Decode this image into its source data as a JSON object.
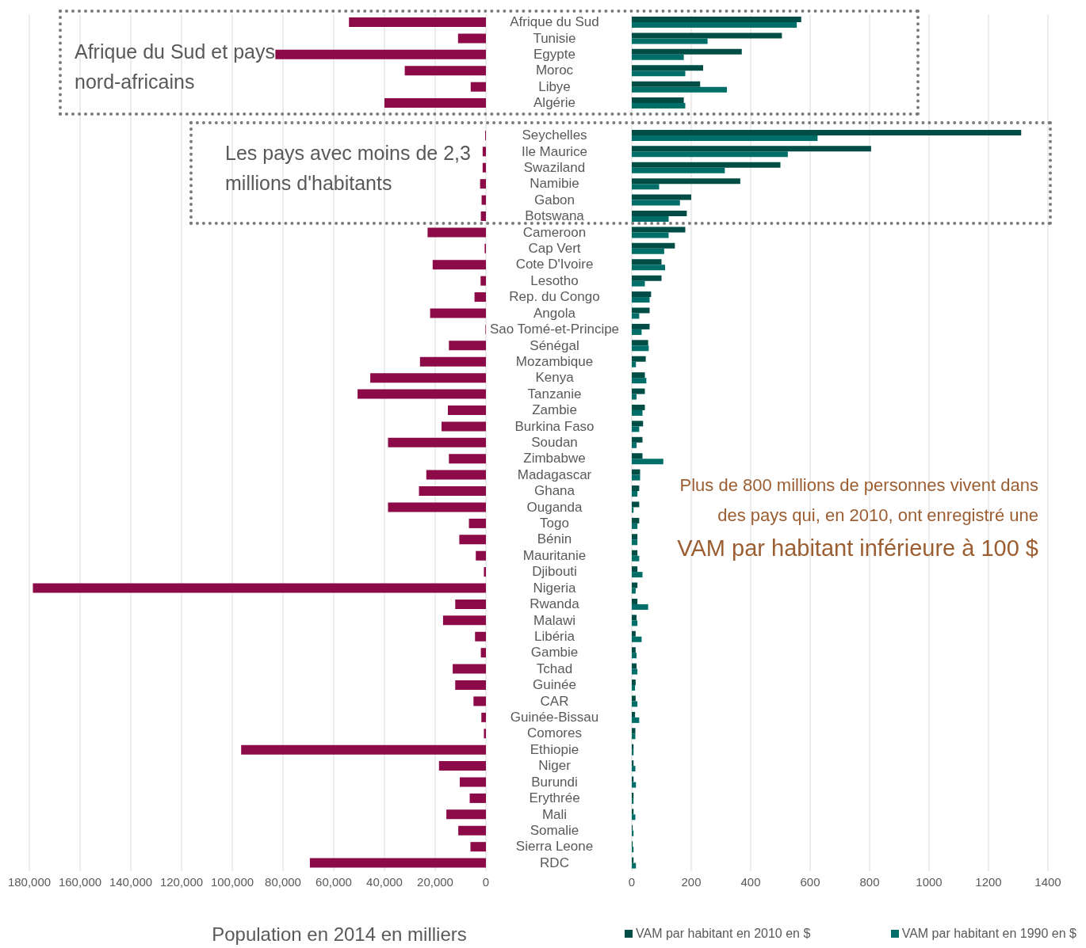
{
  "chart_data": [
    {
      "type": "bar",
      "orientation": "horizontal",
      "xlabel": "Population en 2014 en milliers",
      "categories": [
        "Afrique du Sud",
        "Tunisie",
        "Egypte",
        "Moroc",
        "Libye",
        "Algérie",
        null,
        "Seychelles",
        "Ile Maurice",
        "Swaziland",
        "Namibie",
        "Gabon",
        "Botswana",
        "Cameroon",
        "Cap Vert",
        "Cote D'Ivoire",
        "Lesotho",
        "Rep. du Congo",
        "Angola",
        "Sao Tomé-et-Principe",
        "Sénégal",
        "Mozambique",
        "Kenya",
        "Tanzanie",
        "Zambie",
        "Burkina Faso",
        "Soudan",
        "Zimbabwe",
        "Madagascar",
        "Ghana",
        "Ouganda",
        "Togo",
        "Bénin",
        "Mauritanie",
        "Djibouti",
        "Nigeria",
        "Rwanda",
        "Malawi",
        "Libéria",
        "Gambie",
        "Tchad",
        "Guinée",
        "CAR",
        "Guinée-Bissau",
        "Comores",
        "Ethiopie",
        "Niger",
        "Burundi",
        "Erythrée",
        "Mali",
        "Somalie",
        "Sierra Leone",
        "RDC"
      ],
      "values": [
        54000,
        11000,
        83000,
        32000,
        6000,
        40000,
        null,
        300,
        1300,
        1300,
        2300,
        1700,
        2000,
        23000,
        500,
        21000,
        2100,
        4500,
        22000,
        200,
        14600,
        26000,
        45600,
        50600,
        15000,
        17500,
        38600,
        14600,
        23500,
        26400,
        38600,
        6700,
        10500,
        4000,
        800,
        178600,
        12100,
        16900,
        4300,
        2000,
        13100,
        12100,
        4900,
        1800,
        800,
        96500,
        18500,
        10300,
        6400,
        15600,
        10900,
        6100,
        69400
      ],
      "color": "#8c0a48",
      "xlim": [
        180000,
        0
      ],
      "xticks": [
        {
          "value": 180000,
          "label": "180,000"
        },
        {
          "value": 160000,
          "label": "160,000"
        },
        {
          "value": 140000,
          "label": "140,000"
        },
        {
          "value": 120000,
          "label": "120,000"
        },
        {
          "value": 100000,
          "label": "100,000"
        },
        {
          "value": 80000,
          "label": "80,000"
        },
        {
          "value": 60000,
          "label": "60,000"
        },
        {
          "value": 40000,
          "label": "40,000"
        },
        {
          "value": 20000,
          "label": "20,000"
        },
        0
      ],
      "grid": "x",
      "tick_labels": "x",
      "annotations": [
        "Afrique du Sud et pays nord-africains",
        "Les pays avec moins de 2,3 millions d'habitants"
      ]
    },
    {
      "type": "bar",
      "orientation": "horizontal",
      "categories": [
        "Afrique du Sud",
        "Tunisie",
        "Egypte",
        "Moroc",
        "Libye",
        "Algérie",
        null,
        "Seychelles",
        "Ile Maurice",
        "Swaziland",
        "Namibie",
        "Gabon",
        "Botswana",
        "Cameroon",
        "Cap Vert",
        "Cote D'Ivoire",
        "Lesotho",
        "Rep. du Congo",
        "Angola",
        "Sao Tomé-et-Principe",
        "Sénégal",
        "Mozambique",
        "Kenya",
        "Tanzanie",
        "Zambie",
        "Burkina Faso",
        "Soudan",
        "Zimbabwe",
        "Madagascar",
        "Ghana",
        "Ouganda",
        "Togo",
        "Bénin",
        "Mauritanie",
        "Djibouti",
        "Nigeria",
        "Rwanda",
        "Malawi",
        "Libéria",
        "Gambie",
        "Tchad",
        "Guinée",
        "CAR",
        "Guinée-Bissau",
        "Comores",
        "Ethiopie",
        "Niger",
        "Burundi",
        "Erythrée",
        "Mali",
        "Somalie",
        "Sierra Leone",
        "RDC"
      ],
      "series": [
        {
          "name": "VAM par habitant en 2010 en $",
          "color": "#004d46",
          "values": [
            570,
            505,
            370,
            240,
            230,
            175,
            null,
            1310,
            805,
            500,
            365,
            200,
            185,
            180,
            145,
            100,
            100,
            65,
            60,
            60,
            55,
            47,
            44,
            44,
            44,
            38,
            36,
            36,
            28,
            25,
            25,
            25,
            19,
            19,
            19,
            19,
            19,
            16,
            13,
            13,
            16,
            13,
            13,
            11,
            12,
            6,
            6,
            6,
            6,
            6,
            3,
            3,
            6
          ]
        },
        {
          "name": "VAM par habitant en 1990 en $",
          "color": "#006e68",
          "values": [
            555,
            255,
            175,
            180,
            320,
            180,
            null,
            625,
            525,
            313,
            92,
            162,
            124,
            124,
            109,
            112,
            44,
            60,
            25,
            33,
            57,
            14,
            49,
            16,
            36,
            25,
            16,
            106,
            28,
            19,
            6,
            19,
            19,
            25,
            36,
            13,
            55,
            19,
            33,
            16,
            19,
            11,
            19,
            25,
            12,
            6,
            12,
            14,
            6,
            12,
            6,
            6,
            14
          ]
        }
      ],
      "xlim": [
        0,
        1400
      ],
      "xticks": [
        0,
        200,
        400,
        600,
        800,
        1000,
        1200,
        1400
      ],
      "grid": "x",
      "legend": "bottom",
      "annotations": [
        "Plus de 800 millions de personnes vivent dans des pays qui, en 2010, ont enregistré une",
        "VAM par habitant inférieure à 100 $"
      ]
    }
  ]
}
